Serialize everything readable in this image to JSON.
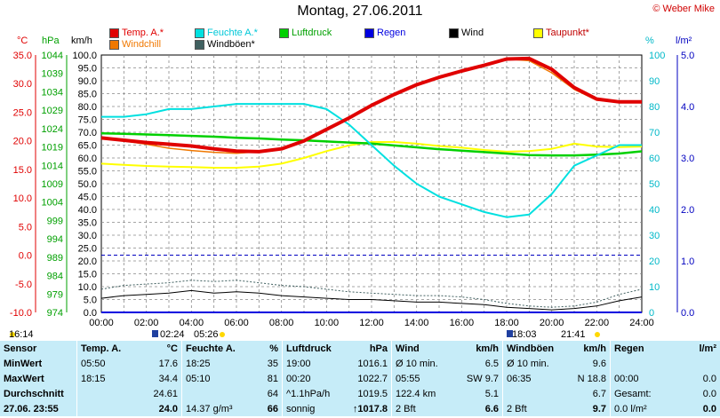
{
  "title": "Montag, 27.06.2011",
  "copyright": "© Weber Mike",
  "legend": [
    {
      "label": "Temp. A.*",
      "color": "#e00000"
    },
    {
      "label": "Feuchte A.*",
      "color": "#00e0e0"
    },
    {
      "label": "Luftdruck",
      "color": "#00d000"
    },
    {
      "label": "Regen",
      "color": "#0000e0"
    },
    {
      "label": "Wind",
      "color": "#000000"
    },
    {
      "label": "Taupunkt*",
      "color": "#ffff00"
    },
    {
      "label": "Windchill",
      "color": "#f07800"
    },
    {
      "label": "Windböen*",
      "color": "#406060"
    }
  ],
  "units": {
    "celsius": "°C",
    "hpa": "hPa",
    "kmh": "km/h",
    "percent": "%",
    "lm2": "l/m²"
  },
  "axes": {
    "celsius_ticks": [
      "35.0",
      "30.0",
      "25.0",
      "20.0",
      "15.0",
      "10.0",
      "5.0",
      "0.0",
      "-5.0",
      "-10.0"
    ],
    "hpa_ticks": [
      "1044",
      "1039",
      "1034",
      "1029",
      "1024",
      "1019",
      "1014",
      "1009",
      "1004",
      "999",
      "994",
      "989",
      "984",
      "979",
      "974"
    ],
    "kmh_ticks": [
      "100.0",
      "95.0",
      "90.0",
      "85.0",
      "80.0",
      "75.0",
      "70.0",
      "65.0",
      "60.0",
      "55.0",
      "50.0",
      "45.0",
      "40.0",
      "35.0",
      "30.0",
      "25.0",
      "20.0",
      "15.0",
      "10.0",
      "5.0",
      "0.0"
    ],
    "percent_ticks": [
      "100",
      "90",
      "80",
      "70",
      "60",
      "50",
      "40",
      "30",
      "20",
      "10",
      "0"
    ],
    "lm2_ticks": [
      "5.0",
      "4.0",
      "3.0",
      "2.0",
      "1.0",
      "0.0"
    ],
    "time_ticks": [
      "00:00",
      "02:00",
      "04:00",
      "06:00",
      "08:00",
      "10:00",
      "12:00",
      "14:00",
      "16:00",
      "18:00",
      "20:00",
      "22:00",
      "24:00"
    ]
  },
  "time_markers": {
    "sunrise": "05:26",
    "sunset": "21:41",
    "min_time": "02:24",
    "max_time": "18:03",
    "left_time": "16:14"
  },
  "chart_data": {
    "type": "line",
    "x": [
      "00:00",
      "01:00",
      "02:00",
      "03:00",
      "04:00",
      "05:00",
      "06:00",
      "07:00",
      "08:00",
      "09:00",
      "10:00",
      "11:00",
      "12:00",
      "13:00",
      "14:00",
      "15:00",
      "16:00",
      "17:00",
      "18:00",
      "19:00",
      "20:00",
      "21:00",
      "22:00",
      "23:00",
      "24:00"
    ],
    "series": [
      {
        "name": "Temp. A.*",
        "axis": "celsius",
        "color": "#e00000",
        "values": [
          20.5,
          20.1,
          19.7,
          19.4,
          19.1,
          18.6,
          18.2,
          18.1,
          18.6,
          20.0,
          22.0,
          24.0,
          26.2,
          28.1,
          29.8,
          31.1,
          32.2,
          33.2,
          34.3,
          34.4,
          32.5,
          29.3,
          27.3,
          26.8,
          26.8
        ]
      },
      {
        "name": "Feuchte A.*",
        "axis": "percent",
        "color": "#00e0e0",
        "values": [
          76,
          76,
          77,
          79,
          79,
          80,
          81,
          81,
          81,
          81,
          79,
          73,
          65,
          57,
          50,
          45,
          42,
          39,
          37,
          38,
          46,
          57,
          61,
          65,
          65
        ]
      },
      {
        "name": "Luftdruck",
        "axis": "hpa",
        "color": "#00d000",
        "values": [
          1022.7,
          1022.6,
          1022.4,
          1022.2,
          1022.0,
          1021.8,
          1021.5,
          1021.3,
          1021.0,
          1020.8,
          1020.5,
          1020.2,
          1019.9,
          1019.4,
          1018.9,
          1018.4,
          1018.0,
          1017.6,
          1017.2,
          1016.8,
          1016.7,
          1016.7,
          1016.9,
          1017.2,
          1017.8
        ]
      },
      {
        "name": "Taupunkt*",
        "axis": "celsius",
        "color": "#ffff00",
        "values": [
          16.0,
          15.8,
          15.6,
          15.5,
          15.4,
          15.3,
          15.3,
          15.5,
          16.0,
          17.0,
          18.2,
          19.2,
          19.8,
          19.8,
          19.5,
          19.1,
          18.8,
          18.4,
          18.1,
          18.2,
          18.6,
          19.5,
          19.0,
          18.9,
          19.0
        ]
      },
      {
        "name": "Windchill",
        "axis": "celsius",
        "color": "#f07800",
        "values": [
          20.5,
          20.0,
          19.4,
          18.7,
          18.3,
          18.0,
          17.8,
          18.1,
          18.6,
          20.0,
          22.0,
          24.0,
          26.2,
          28.1,
          29.8,
          31.1,
          32.2,
          33.2,
          34.3,
          34.0,
          31.9,
          29.0,
          27.1,
          26.8,
          26.8
        ]
      },
      {
        "name": "Wind",
        "axis": "kmh",
        "color": "#000000",
        "values": [
          5.5,
          6.5,
          7.0,
          7.5,
          8.5,
          7.5,
          8.0,
          7.5,
          6.5,
          6.0,
          5.5,
          5.0,
          5.0,
          4.5,
          4.0,
          4.0,
          3.5,
          3.0,
          2.0,
          1.5,
          1.0,
          1.5,
          2.5,
          4.5,
          6.0
        ]
      },
      {
        "name": "Windböen*",
        "axis": "kmh",
        "color": "#406060",
        "values": [
          9.0,
          10.5,
          11.0,
          11.5,
          12.5,
          12.0,
          12.5,
          11.5,
          10.5,
          10.0,
          9.0,
          8.0,
          7.5,
          7.0,
          6.5,
          6.5,
          6.0,
          5.0,
          3.5,
          2.5,
          2.0,
          2.5,
          4.0,
          7.0,
          9.0
        ]
      },
      {
        "name": "Regen",
        "axis": "lm2",
        "color": "#0000e0",
        "values": [
          0,
          0,
          0,
          0,
          0,
          0,
          0,
          0,
          0,
          0,
          0,
          0,
          0,
          0,
          0,
          0,
          0,
          0,
          0,
          0,
          0,
          0,
          0,
          0,
          0
        ]
      }
    ],
    "xlim": [
      "00:00",
      "24:00"
    ],
    "ylim_celsius": [
      -10,
      35
    ],
    "ylim_hpa": [
      974,
      1044
    ],
    "ylim_kmh": [
      0,
      100
    ],
    "ylim_percent": [
      0,
      100
    ],
    "ylim_lm2": [
      0,
      5
    ],
    "grid": true
  },
  "stats": {
    "header": [
      "Sensor",
      "Temp. A.",
      "°C",
      "Feuchte A.",
      "%",
      "Luftdruck",
      "hPa",
      "Wind",
      "km/h",
      "Windböen",
      "km/h",
      "Regen",
      "l/m²"
    ],
    "rows": [
      [
        "MinWert",
        "05:50",
        "17.6",
        "18:25",
        "35",
        "19:00",
        "1016.1",
        "Ø 10 min.",
        "6.5",
        "Ø 10 min.",
        "9.6",
        "",
        ""
      ],
      [
        "MaxWert",
        "18:15",
        "34.4",
        "05:10",
        "81",
        "00:20",
        "1022.7",
        "05:55",
        "SW 9.7",
        "06:35",
        "N 18.8",
        "00:00",
        "0.0"
      ],
      [
        "Durchschnitt",
        "",
        "24.61",
        "",
        "64",
        "^1.1hPa/h",
        "1019.5",
        "122.4 km",
        "5.1",
        "",
        "6.7",
        "Gesamt:",
        "0.0"
      ],
      [
        "27.06. 23:55",
        "",
        "24.0",
        "14.37 g/m³",
        "66",
        "sonnig",
        "↑1017.8",
        "2 Bft",
        "6.6",
        "2 Bft",
        "9.7",
        "0.0 l/m²",
        "0.0"
      ]
    ]
  }
}
